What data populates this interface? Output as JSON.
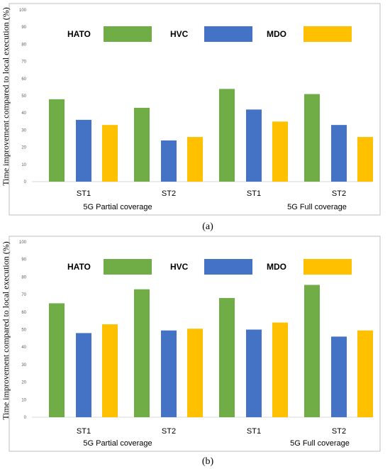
{
  "chart_data": [
    {
      "type": "bar",
      "caption": "(a)",
      "ylabel": "Time improvement compared to local execution (%)",
      "ylim": [
        0,
        100
      ],
      "yticks": [
        "0",
        "10",
        "20",
        "30",
        "40",
        "50",
        "60",
        "70",
        "80",
        "90",
        "100"
      ],
      "categories": [
        "ST1",
        "ST2",
        "ST1",
        "ST2"
      ],
      "groups": [
        "5G Partial coverage",
        "5G Full coverage"
      ],
      "legend_placement": "top",
      "grid": false,
      "series": [
        {
          "name": "HATO",
          "color": "#70ad47",
          "values": [
            48,
            43,
            54,
            51
          ]
        },
        {
          "name": "HVC",
          "color": "#4472c4",
          "values": [
            36,
            24,
            42,
            33
          ]
        },
        {
          "name": "MDO",
          "color": "#ffc000",
          "values": [
            33,
            26,
            35,
            26
          ]
        }
      ]
    },
    {
      "type": "bar",
      "caption": "(b)",
      "ylabel": "Time improvement compared to local execution (%)",
      "ylim": [
        0,
        100
      ],
      "yticks": [
        "0",
        "10",
        "20",
        "30",
        "40",
        "50",
        "60",
        "70",
        "80",
        "90",
        "100"
      ],
      "categories": [
        "ST1",
        "ST2",
        "ST1",
        "ST2"
      ],
      "groups": [
        "5G Partial coverage",
        "5G Full coverage"
      ],
      "legend_placement": "top",
      "grid": false,
      "series": [
        {
          "name": "HATO",
          "color": "#70ad47",
          "values": [
            65,
            73,
            68,
            75.5
          ]
        },
        {
          "name": "HVC",
          "color": "#4472c4",
          "values": [
            48,
            49.5,
            50,
            46
          ]
        },
        {
          "name": "MDO",
          "color": "#ffc000",
          "values": [
            53,
            50.5,
            54,
            49.5
          ]
        }
      ]
    }
  ]
}
